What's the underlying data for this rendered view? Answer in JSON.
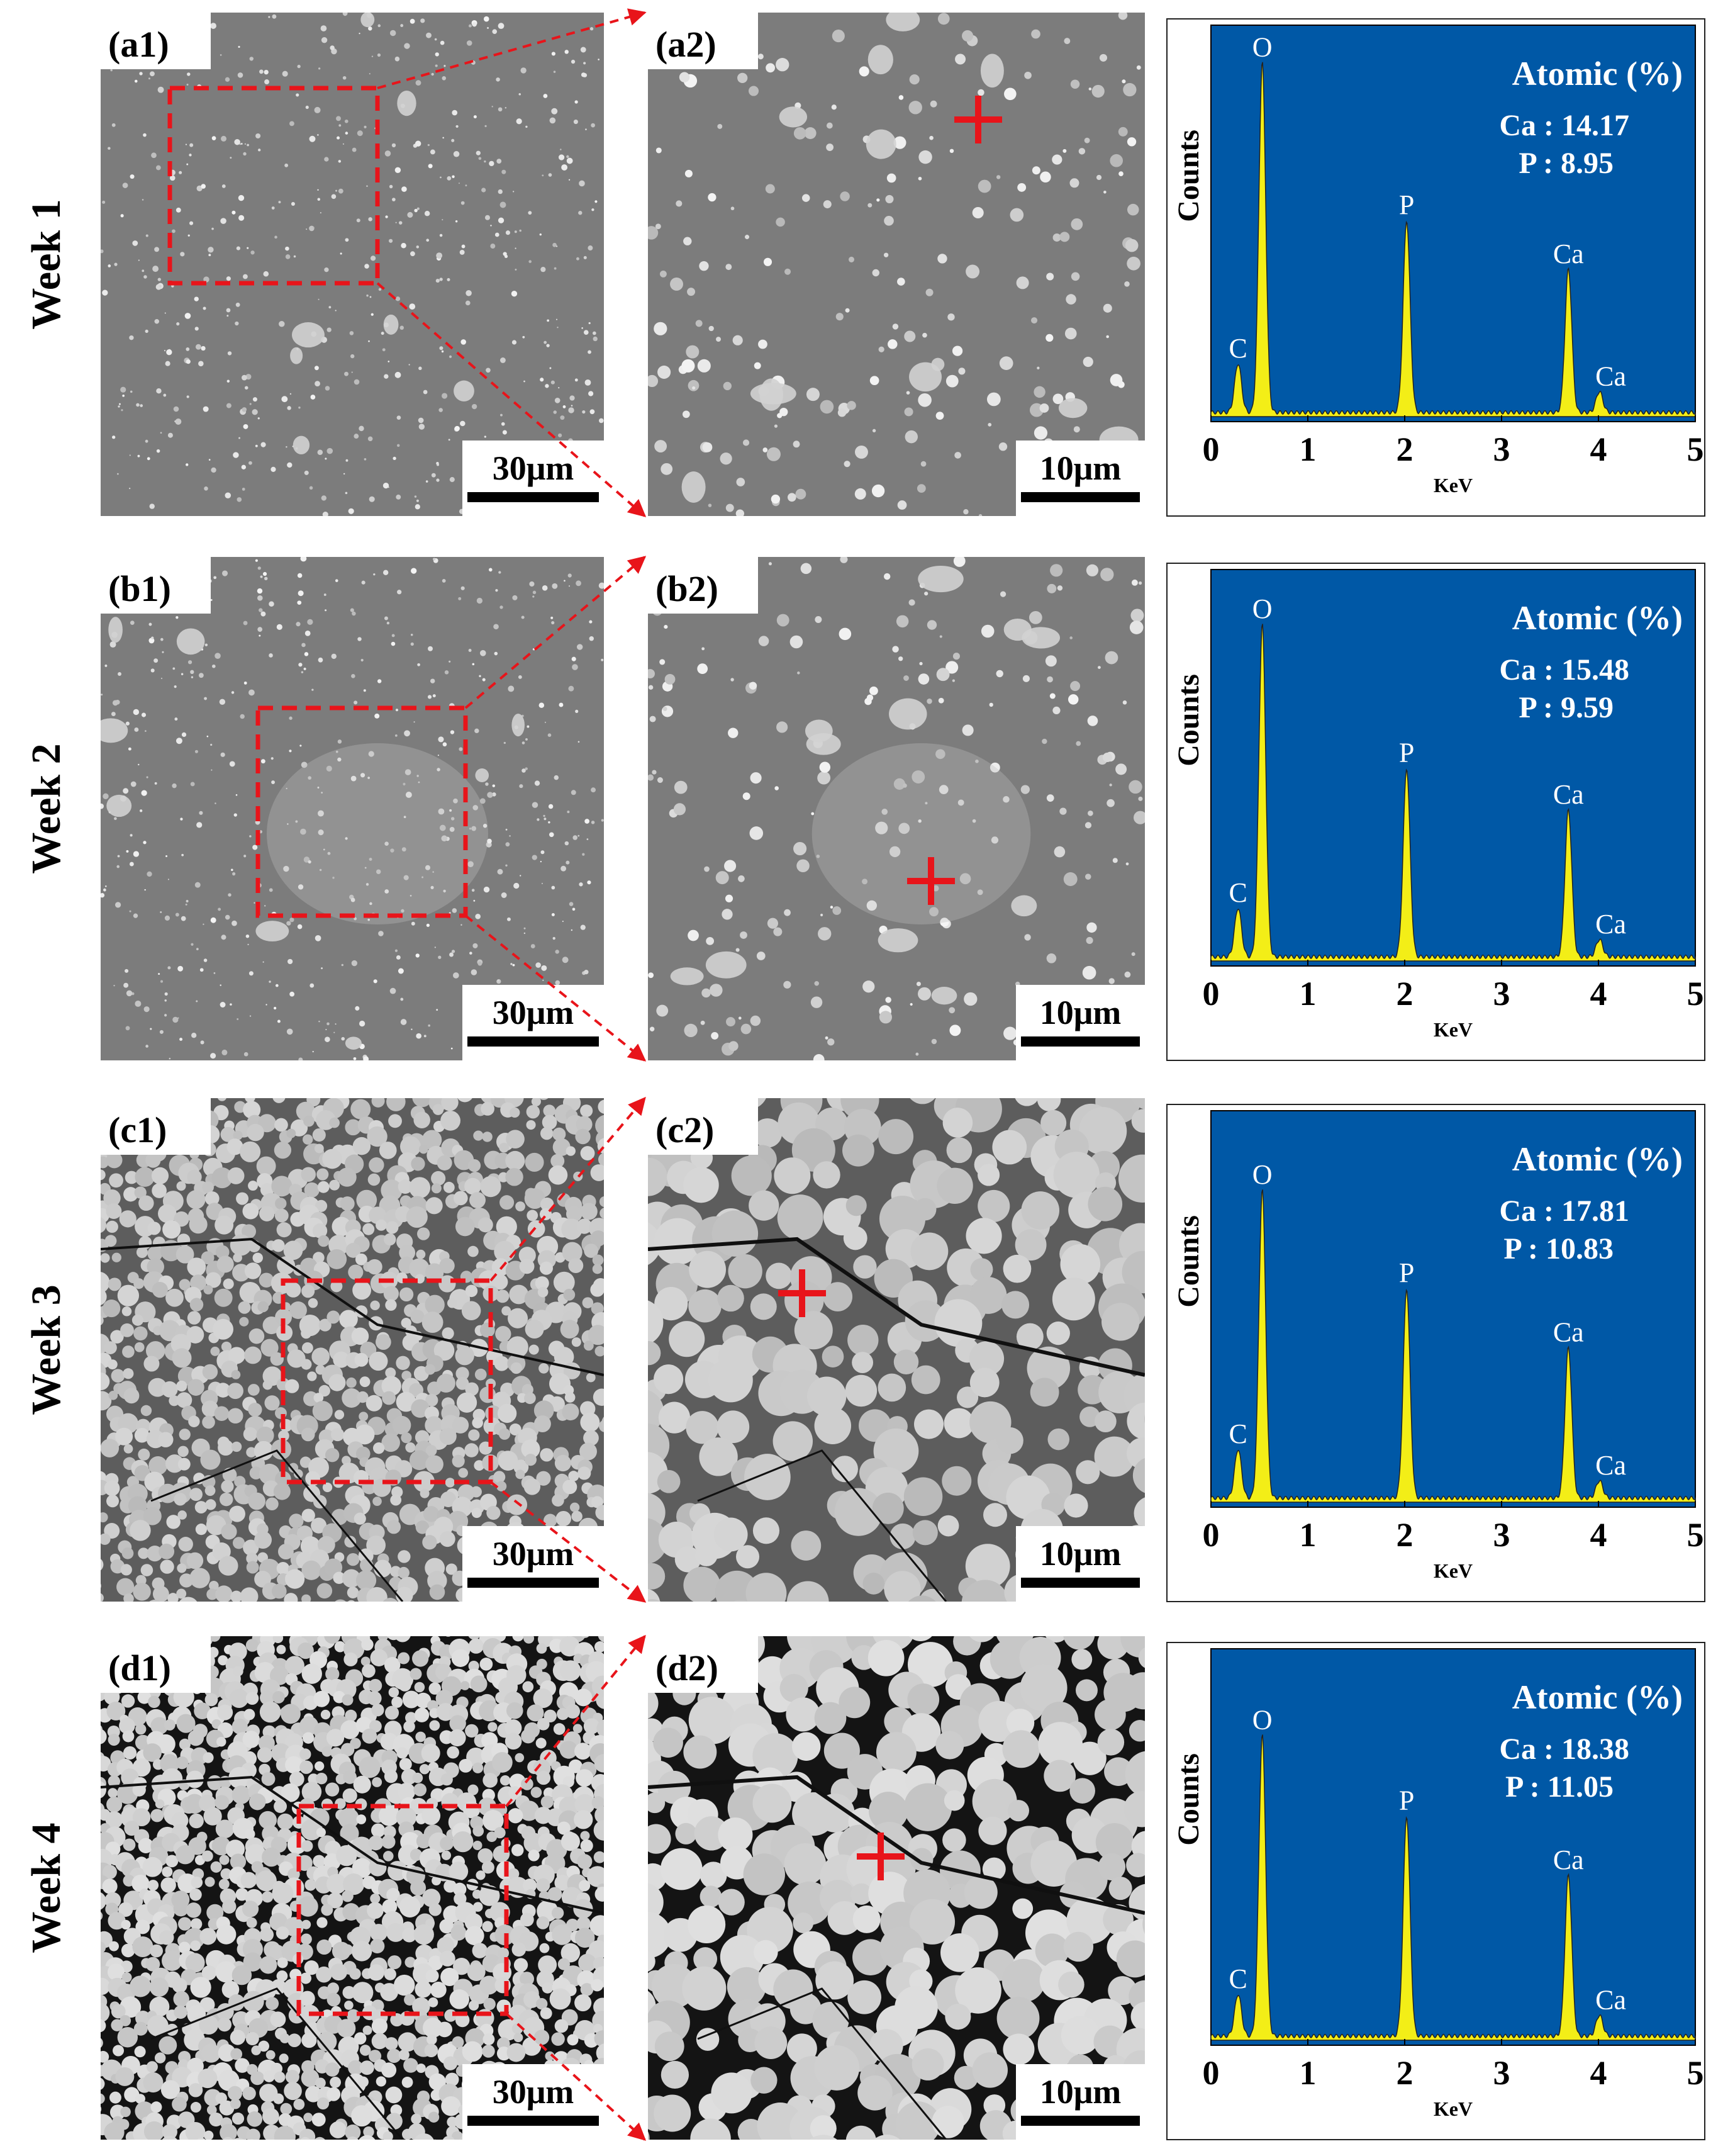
{
  "rows": [
    {
      "week_label": "Week 1",
      "left_label": "(a1)",
      "right_label": "(a2)",
      "scale_left": "30μm",
      "scale_right": "10μm",
      "eds": {
        "atomic_title": "Atomic (%)",
        "ca_line": "Ca : 14.17",
        "p_line": "P : 8.95"
      }
    },
    {
      "week_label": "Week 2",
      "left_label": "(b1)",
      "right_label": "(b2)",
      "scale_left": "30μm",
      "scale_right": "10μm",
      "eds": {
        "atomic_title": "Atomic (%)",
        "ca_line": "Ca : 15.48",
        "p_line": "P : 9.59"
      }
    },
    {
      "week_label": "Week 3",
      "left_label": "(c1)",
      "right_label": "(c2)",
      "scale_left": "30μm",
      "scale_right": "10μm",
      "eds": {
        "atomic_title": "Atomic (%)",
        "ca_line": "Ca : 17.81",
        "p_line": "P : 10.83"
      }
    },
    {
      "week_label": "Week 4",
      "left_label": "(d1)",
      "right_label": "(d2)",
      "scale_left": "30μm",
      "scale_right": "10μm",
      "eds": {
        "atomic_title": "Atomic (%)",
        "ca_line": "Ca : 18.38",
        "p_line": "P : 11.05"
      }
    }
  ],
  "chart_data": [
    {
      "type": "line",
      "xlabel": "KeV",
      "ylabel": "Counts",
      "xlim": [
        0,
        5
      ],
      "x_ticks": [
        "0",
        "1",
        "2",
        "3",
        "4",
        "5"
      ],
      "peaks": [
        {
          "label": "C",
          "x": 0.28,
          "height": 0.14
        },
        {
          "label": "O",
          "x": 0.53,
          "height": 1.0
        },
        {
          "label": "P",
          "x": 2.02,
          "height": 0.55
        },
        {
          "label": "Ca",
          "x": 3.69,
          "height": 0.41
        },
        {
          "label": "Ca",
          "x": 4.01,
          "height": 0.06
        }
      ]
    },
    {
      "type": "line",
      "xlabel": "KeV",
      "ylabel": "Counts",
      "xlim": [
        0,
        5
      ],
      "x_ticks": [
        "0",
        "1",
        "2",
        "3",
        "4",
        "5"
      ],
      "peaks": [
        {
          "label": "C",
          "x": 0.28,
          "height": 0.14
        },
        {
          "label": "O",
          "x": 0.53,
          "height": 0.95
        },
        {
          "label": "P",
          "x": 2.02,
          "height": 0.54
        },
        {
          "label": "Ca",
          "x": 3.69,
          "height": 0.42
        },
        {
          "label": "Ca",
          "x": 4.01,
          "height": 0.05
        }
      ]
    },
    {
      "type": "line",
      "xlabel": "KeV",
      "ylabel": "Counts",
      "xlim": [
        0,
        5
      ],
      "x_ticks": [
        "0",
        "1",
        "2",
        "3",
        "4",
        "5"
      ],
      "peaks": [
        {
          "label": "C",
          "x": 0.28,
          "height": 0.14
        },
        {
          "label": "O",
          "x": 0.53,
          "height": 0.88
        },
        {
          "label": "P",
          "x": 2.02,
          "height": 0.6
        },
        {
          "label": "Ca",
          "x": 3.69,
          "height": 0.43
        },
        {
          "label": "Ca",
          "x": 4.01,
          "height": 0.05
        }
      ]
    },
    {
      "type": "line",
      "xlabel": "KeV",
      "ylabel": "Counts",
      "xlim": [
        0,
        5
      ],
      "x_ticks": [
        "0",
        "1",
        "2",
        "3",
        "4",
        "5"
      ],
      "peaks": [
        {
          "label": "C",
          "x": 0.28,
          "height": 0.12
        },
        {
          "label": "O",
          "x": 0.53,
          "height": 0.86
        },
        {
          "label": "P",
          "x": 2.02,
          "height": 0.63
        },
        {
          "label": "Ca",
          "x": 3.69,
          "height": 0.46
        },
        {
          "label": "Ca",
          "x": 4.01,
          "height": 0.06
        }
      ]
    }
  ]
}
